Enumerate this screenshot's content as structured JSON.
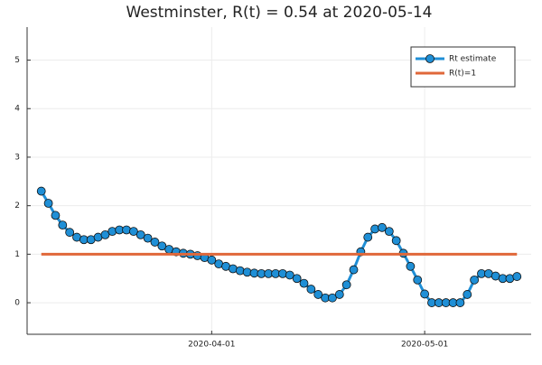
{
  "chart_data": {
    "type": "line",
    "title": "Westminster, R(t) = 0.54 at 2020-05-14",
    "xlim": [
      "2020-03-06",
      "2020-05-16"
    ],
    "xticks": [
      "2020-04-01",
      "2020-05-01"
    ],
    "ylim": [
      -0.65,
      5.68
    ],
    "yticks": [
      0,
      1,
      2,
      3,
      4,
      5
    ],
    "grid": true,
    "legend": "top-right",
    "series": [
      {
        "name": "Rt estimate",
        "color": "#1f8fd6",
        "marker": "circle",
        "x": [
          "2020-03-08",
          "2020-03-09",
          "2020-03-10",
          "2020-03-11",
          "2020-03-12",
          "2020-03-13",
          "2020-03-14",
          "2020-03-15",
          "2020-03-16",
          "2020-03-17",
          "2020-03-18",
          "2020-03-19",
          "2020-03-20",
          "2020-03-21",
          "2020-03-22",
          "2020-03-23",
          "2020-03-24",
          "2020-03-25",
          "2020-03-26",
          "2020-03-27",
          "2020-03-28",
          "2020-03-29",
          "2020-03-30",
          "2020-03-31",
          "2020-04-01",
          "2020-04-02",
          "2020-04-03",
          "2020-04-04",
          "2020-04-05",
          "2020-04-06",
          "2020-04-07",
          "2020-04-08",
          "2020-04-09",
          "2020-04-10",
          "2020-04-11",
          "2020-04-12",
          "2020-04-13",
          "2020-04-14",
          "2020-04-15",
          "2020-04-16",
          "2020-04-17",
          "2020-04-18",
          "2020-04-19",
          "2020-04-20",
          "2020-04-21",
          "2020-04-22",
          "2020-04-23",
          "2020-04-24",
          "2020-04-25",
          "2020-04-26",
          "2020-04-27",
          "2020-04-28",
          "2020-04-29",
          "2020-04-30",
          "2020-05-01",
          "2020-05-02",
          "2020-05-03",
          "2020-05-04",
          "2020-05-05",
          "2020-05-06",
          "2020-05-07",
          "2020-05-08",
          "2020-05-09",
          "2020-05-10",
          "2020-05-11",
          "2020-05-12",
          "2020-05-13",
          "2020-05-14"
        ],
        "values": [
          2.3,
          2.05,
          1.8,
          1.6,
          1.45,
          1.35,
          1.3,
          1.3,
          1.35,
          1.4,
          1.47,
          1.5,
          1.5,
          1.47,
          1.4,
          1.33,
          1.25,
          1.17,
          1.1,
          1.05,
          1.02,
          1.0,
          0.97,
          0.93,
          0.88,
          0.8,
          0.75,
          0.7,
          0.66,
          0.63,
          0.61,
          0.6,
          0.6,
          0.6,
          0.6,
          0.57,
          0.5,
          0.4,
          0.28,
          0.17,
          0.1,
          0.1,
          0.17,
          0.37,
          0.68,
          1.05,
          1.35,
          1.52,
          1.55,
          1.47,
          1.28,
          1.02,
          0.75,
          0.47,
          0.18,
          0,
          0,
          0,
          0,
          0,
          0.17,
          0.47,
          0.6,
          0.6,
          0.55,
          0.5,
          0.5,
          0.54
        ]
      },
      {
        "name": "R(t)=1",
        "color": "#e0683a",
        "x": [
          "2020-03-08",
          "2020-05-14"
        ],
        "values": [
          1,
          1
        ]
      }
    ]
  }
}
